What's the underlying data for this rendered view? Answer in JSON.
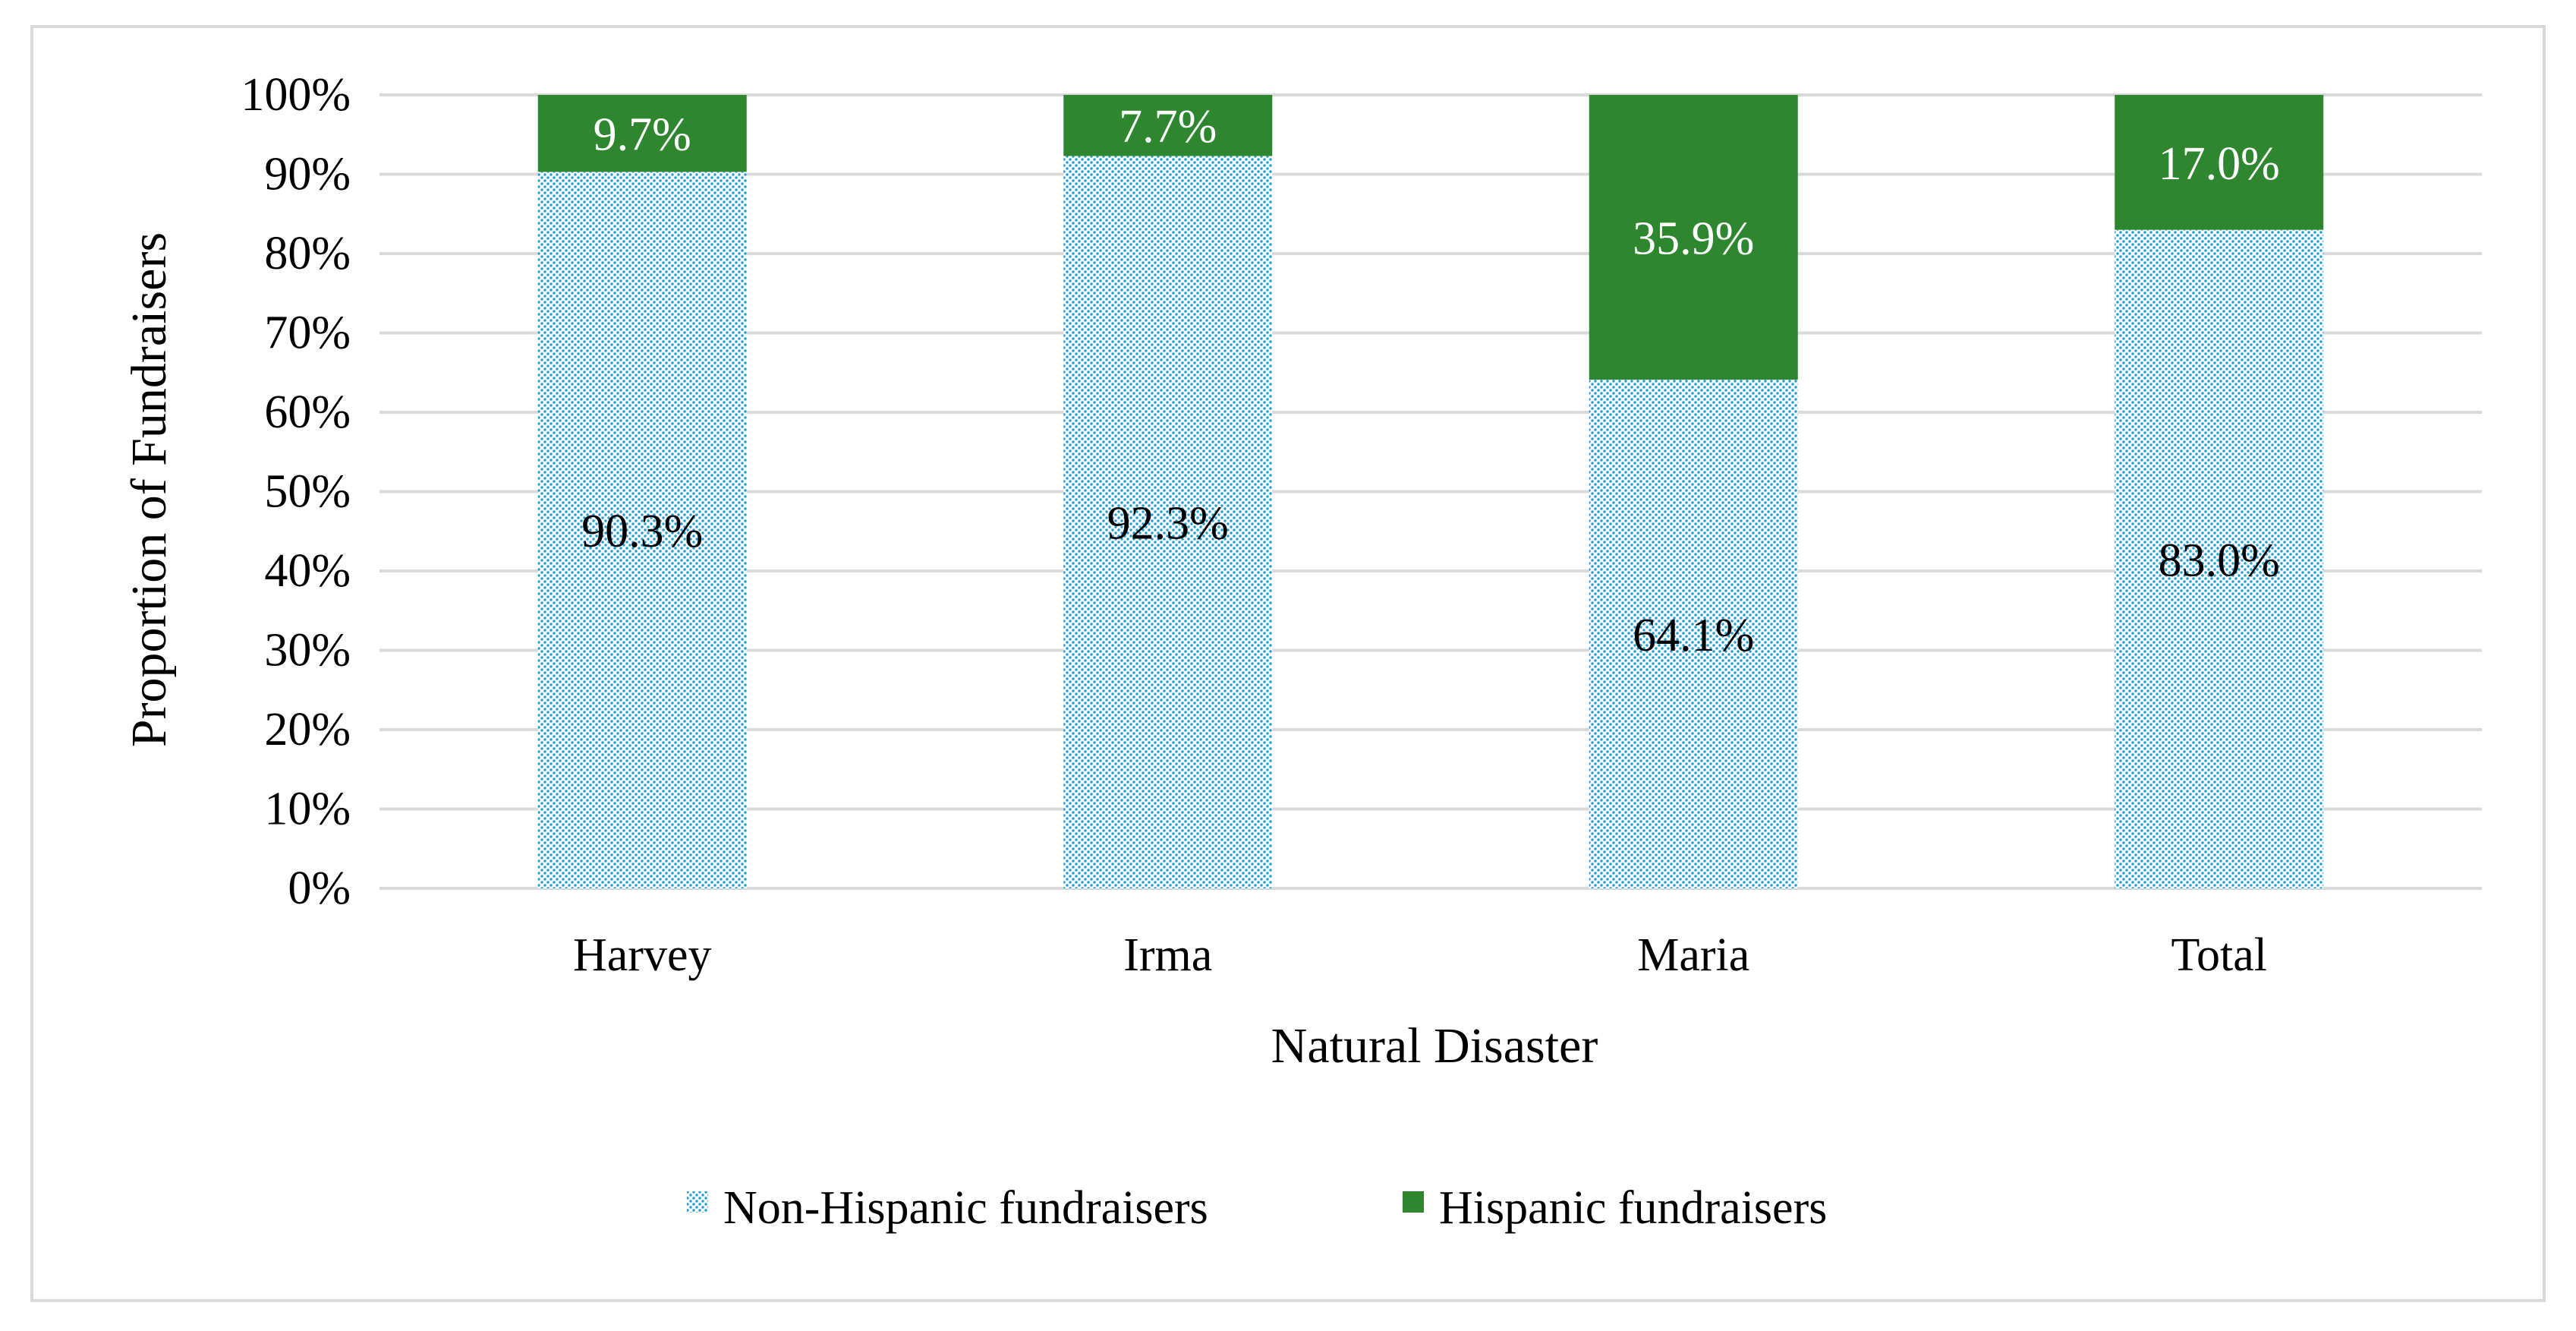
{
  "chart_data": {
    "type": "bar",
    "stacked": true,
    "title": "",
    "xlabel": "Natural Disaster",
    "ylabel": "Proportion of Fundraisers",
    "ylim": [
      0,
      100
    ],
    "yticks": [
      "0%",
      "10%",
      "20%",
      "30%",
      "40%",
      "50%",
      "60%",
      "70%",
      "80%",
      "90%",
      "100%"
    ],
    "grid": true,
    "legend_position": "bottom",
    "categories": [
      "Harvey",
      "Irma",
      "Maria",
      "Total"
    ],
    "series": [
      {
        "name": "Non-Hispanic fundraisers",
        "values": [
          90.3,
          92.3,
          64.1,
          83.0
        ],
        "labels": [
          "90.3%",
          "92.3%",
          "64.1%",
          "83.0%"
        ],
        "color": "#1f9bd1",
        "pattern": "dotted"
      },
      {
        "name": "Hispanic fundraisers",
        "values": [
          9.7,
          7.7,
          35.9,
          17.0
        ],
        "labels": [
          "9.7%",
          "7.7%",
          "35.9%",
          "17.0%"
        ],
        "color": "#2e872e",
        "pattern": "solid"
      }
    ]
  }
}
